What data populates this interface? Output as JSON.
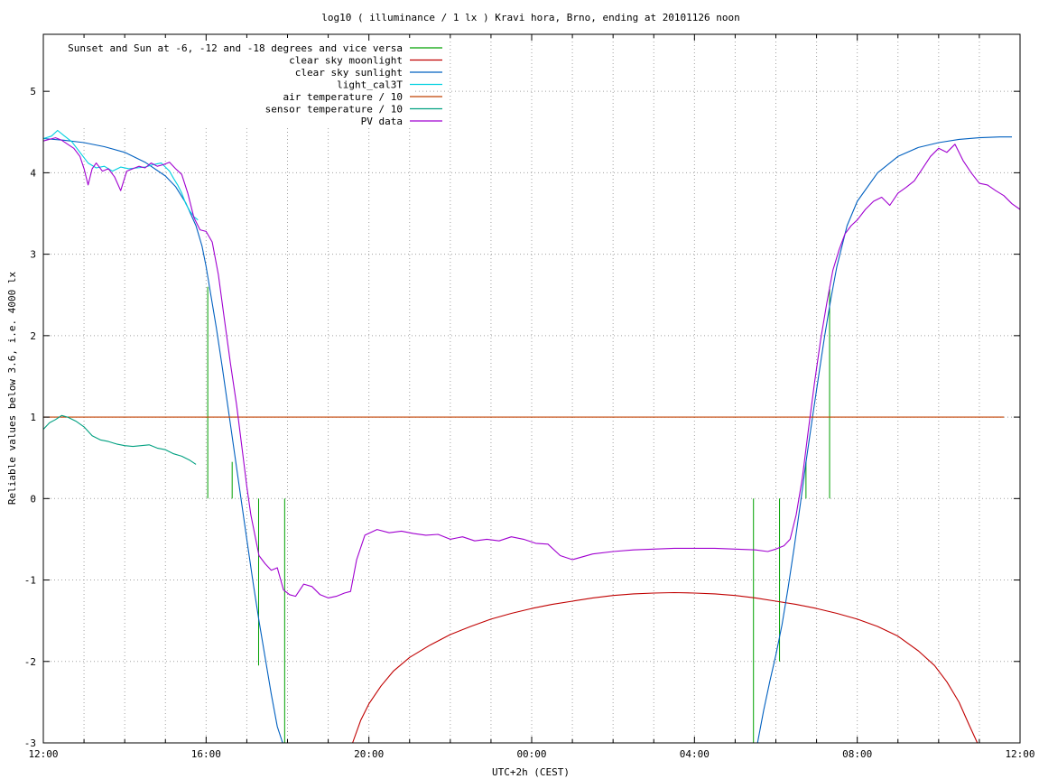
{
  "chart_data": {
    "type": "line",
    "title": "log10 ( illuminance / 1 lx ) Kravi hora, Brno, ending at 20101126 noon",
    "xlabel": "UTC+2h (CEST)",
    "ylabel": "Reliable values below 3.6, i.e. 4000 lx",
    "xlim": [
      12,
      36
    ],
    "ylim": [
      -3,
      5.7
    ],
    "x_minor_step_hours": 1,
    "x_major_ticks": [
      {
        "value": 12,
        "label": "12:00"
      },
      {
        "value": 16,
        "label": "16:00"
      },
      {
        "value": 20,
        "label": "20:00"
      },
      {
        "value": 24,
        "label": "00:00"
      },
      {
        "value": 28,
        "label": "04:00"
      },
      {
        "value": 32,
        "label": "08:00"
      },
      {
        "value": 36,
        "label": "12:00"
      }
    ],
    "y_ticks": [
      {
        "value": -3,
        "label": "-3"
      },
      {
        "value": -2,
        "label": "-2"
      },
      {
        "value": -1,
        "label": "-1"
      },
      {
        "value": 0,
        "label": "0"
      },
      {
        "value": 1,
        "label": "1"
      },
      {
        "value": 2,
        "label": "2"
      },
      {
        "value": 3,
        "label": "3"
      },
      {
        "value": 4,
        "label": "4"
      },
      {
        "value": 5,
        "label": "5"
      }
    ],
    "grid": true,
    "legend_position": "top-left",
    "series": [
      {
        "name": "Sunset and Sun at -6, -12 and -18 degrees and vice versa",
        "color": "#00a000",
        "kind": "vertical_markers",
        "markers": [
          {
            "x": 16.04,
            "y0": 0,
            "y1": 2.6
          },
          {
            "x": 16.64,
            "y0": 0,
            "y1": 0.45
          },
          {
            "x": 17.29,
            "y0": -2.05,
            "y1": 0
          },
          {
            "x": 17.93,
            "y0": -3,
            "y1": 0
          },
          {
            "x": 29.45,
            "y0": -3,
            "y1": 0
          },
          {
            "x": 30.09,
            "y0": -2.0,
            "y1": 0
          },
          {
            "x": 30.74,
            "y0": 0,
            "y1": 0.45
          },
          {
            "x": 31.32,
            "y0": 0,
            "y1": 2.6
          }
        ]
      },
      {
        "name": "clear sky moonlight",
        "color": "#c00000",
        "x": [
          19.6,
          19.8,
          20.0,
          20.3,
          20.6,
          21.0,
          21.5,
          22.0,
          22.5,
          23.0,
          23.5,
          24.0,
          24.5,
          25.0,
          25.5,
          26.0,
          26.5,
          27.0,
          27.5,
          28.0,
          28.5,
          29.0,
          29.5,
          30.0,
          30.5,
          31.0,
          31.5,
          32.0,
          32.5,
          33.0,
          33.5,
          33.9,
          34.2,
          34.5,
          34.75,
          34.95
        ],
        "values": [
          -3.0,
          -2.72,
          -2.52,
          -2.3,
          -2.12,
          -1.95,
          -1.8,
          -1.67,
          -1.57,
          -1.48,
          -1.41,
          -1.35,
          -1.3,
          -1.26,
          -1.22,
          -1.19,
          -1.17,
          -1.16,
          -1.155,
          -1.16,
          -1.17,
          -1.19,
          -1.22,
          -1.26,
          -1.3,
          -1.35,
          -1.41,
          -1.48,
          -1.57,
          -1.69,
          -1.87,
          -2.05,
          -2.25,
          -2.5,
          -2.78,
          -3.0
        ]
      },
      {
        "name": "clear sky sunlight",
        "color": "#0060c0",
        "x": [
          12.0,
          12.5,
          13.0,
          13.5,
          14.0,
          14.5,
          15.0,
          15.25,
          15.5,
          15.75,
          15.9,
          16.0,
          16.1,
          16.25,
          16.4,
          16.55,
          16.7,
          16.85,
          17.0,
          17.15,
          17.3,
          17.45,
          17.6,
          17.75,
          17.88,
          29.55,
          29.7,
          29.85,
          30.0,
          30.15,
          30.3,
          30.45,
          30.6,
          30.75,
          30.9,
          31.05,
          31.2,
          31.35,
          31.5,
          31.75,
          32.0,
          32.5,
          33.0,
          33.5,
          34.0,
          34.5,
          35.0,
          35.5,
          35.8
        ],
        "values": [
          4.42,
          4.4,
          4.37,
          4.32,
          4.25,
          4.13,
          3.96,
          3.83,
          3.63,
          3.35,
          3.1,
          2.85,
          2.55,
          2.1,
          1.6,
          1.08,
          0.55,
          0.02,
          -0.5,
          -1.02,
          -1.5,
          -1.95,
          -2.4,
          -2.8,
          -3.0,
          -3.0,
          -2.6,
          -2.25,
          -1.92,
          -1.55,
          -1.1,
          -0.6,
          -0.07,
          0.48,
          1.0,
          1.5,
          2.0,
          2.45,
          2.85,
          3.35,
          3.65,
          4.0,
          4.2,
          4.31,
          4.37,
          4.41,
          4.43,
          4.44,
          4.44
        ]
      },
      {
        "name": "light_cal3T",
        "color": "#00d0e0",
        "x": [
          12.0,
          12.2,
          12.35,
          12.5,
          12.7,
          12.9,
          13.1,
          13.3,
          13.5,
          13.7,
          13.9,
          14.1,
          14.3,
          14.5,
          14.7,
          14.9,
          15.0,
          15.1,
          15.2,
          15.3,
          15.4,
          15.5,
          15.6,
          15.7,
          15.8
        ],
        "values": [
          4.42,
          4.45,
          4.52,
          4.46,
          4.38,
          4.25,
          4.12,
          4.06,
          4.08,
          4.02,
          4.07,
          4.05,
          4.06,
          4.07,
          4.1,
          4.12,
          4.07,
          4.02,
          3.93,
          3.85,
          3.75,
          3.62,
          3.53,
          3.46,
          3.42
        ]
      },
      {
        "name": "air temperature / 10",
        "color": "#c04000",
        "x": [
          12.0,
          35.6
        ],
        "values": [
          1.0,
          1.0
        ]
      },
      {
        "name": "sensor temperature / 10",
        "color": "#00a080",
        "x": [
          12.0,
          12.15,
          12.3,
          12.45,
          12.6,
          12.8,
          13.0,
          13.2,
          13.4,
          13.6,
          13.8,
          14.0,
          14.2,
          14.4,
          14.6,
          14.8,
          15.0,
          15.2,
          15.4,
          15.6,
          15.75
        ],
        "values": [
          0.85,
          0.93,
          0.97,
          1.02,
          1.0,
          0.95,
          0.88,
          0.77,
          0.72,
          0.7,
          0.67,
          0.65,
          0.64,
          0.65,
          0.66,
          0.62,
          0.6,
          0.55,
          0.52,
          0.47,
          0.42
        ]
      },
      {
        "name": "PV data",
        "color": "#a000d0",
        "x": [
          12.0,
          12.15,
          12.3,
          12.45,
          12.6,
          12.75,
          12.9,
          13.0,
          13.1,
          13.2,
          13.3,
          13.45,
          13.6,
          13.75,
          13.9,
          14.05,
          14.2,
          14.35,
          14.5,
          14.65,
          14.8,
          14.95,
          15.1,
          15.25,
          15.4,
          15.55,
          15.7,
          15.85,
          16.0,
          16.15,
          16.3,
          16.45,
          16.6,
          16.75,
          16.9,
          17.0,
          17.1,
          17.2,
          17.3,
          17.45,
          17.6,
          17.75,
          17.9,
          18.05,
          18.2,
          18.4,
          18.6,
          18.8,
          19.0,
          19.2,
          19.4,
          19.55,
          19.7,
          19.9,
          20.2,
          20.5,
          20.8,
          21.1,
          21.4,
          21.7,
          22.0,
          22.3,
          22.6,
          22.9,
          23.2,
          23.5,
          23.8,
          24.1,
          24.4,
          24.7,
          25.0,
          25.5,
          26.0,
          26.5,
          27.0,
          27.5,
          28.0,
          28.5,
          29.0,
          29.5,
          29.8,
          30.0,
          30.2,
          30.35,
          30.5,
          30.65,
          30.8,
          30.95,
          31.1,
          31.25,
          31.4,
          31.55,
          31.7,
          31.85,
          32.0,
          32.2,
          32.4,
          32.6,
          32.8,
          33.0,
          33.2,
          33.4,
          33.6,
          33.8,
          34.0,
          34.2,
          34.4,
          34.6,
          34.8,
          35.0,
          35.2,
          35.4,
          35.6,
          35.8,
          36.0
        ],
        "values": [
          4.39,
          4.41,
          4.43,
          4.4,
          4.35,
          4.3,
          4.2,
          4.05,
          3.85,
          4.05,
          4.12,
          4.02,
          4.05,
          3.95,
          3.78,
          4.02,
          4.05,
          4.08,
          4.06,
          4.12,
          4.08,
          4.1,
          4.13,
          4.05,
          3.98,
          3.75,
          3.45,
          3.3,
          3.28,
          3.15,
          2.75,
          2.2,
          1.65,
          1.15,
          0.55,
          0.15,
          -0.2,
          -0.45,
          -0.7,
          -0.8,
          -0.88,
          -0.85,
          -1.12,
          -1.18,
          -1.2,
          -1.05,
          -1.08,
          -1.18,
          -1.22,
          -1.2,
          -1.16,
          -1.14,
          -0.75,
          -0.45,
          -0.38,
          -0.42,
          -0.4,
          -0.43,
          -0.45,
          -0.44,
          -0.5,
          -0.47,
          -0.52,
          -0.5,
          -0.52,
          -0.47,
          -0.5,
          -0.55,
          -0.56,
          -0.7,
          -0.75,
          -0.68,
          -0.65,
          -0.63,
          -0.62,
          -0.61,
          -0.61,
          -0.61,
          -0.62,
          -0.63,
          -0.65,
          -0.62,
          -0.58,
          -0.5,
          -0.2,
          0.25,
          0.85,
          1.42,
          1.95,
          2.4,
          2.8,
          3.05,
          3.25,
          3.35,
          3.42,
          3.55,
          3.65,
          3.7,
          3.6,
          3.75,
          3.82,
          3.9,
          4.05,
          4.2,
          4.3,
          4.25,
          4.35,
          4.15,
          4.0,
          3.87,
          3.85,
          3.78,
          3.72,
          3.62,
          3.55
        ]
      }
    ]
  }
}
